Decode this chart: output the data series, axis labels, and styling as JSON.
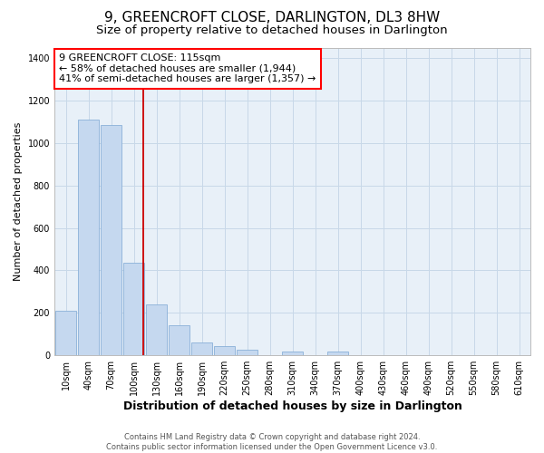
{
  "title": "9, GREENCROFT CLOSE, DARLINGTON, DL3 8HW",
  "subtitle": "Size of property relative to detached houses in Darlington",
  "xlabel": "Distribution of detached houses by size in Darlington",
  "ylabel": "Number of detached properties",
  "categories": [
    "10sqm",
    "40sqm",
    "70sqm",
    "100sqm",
    "130sqm",
    "160sqm",
    "190sqm",
    "220sqm",
    "250sqm",
    "280sqm",
    "310sqm",
    "340sqm",
    "370sqm",
    "400sqm",
    "430sqm",
    "460sqm",
    "490sqm",
    "520sqm",
    "550sqm",
    "580sqm",
    "610sqm"
  ],
  "values": [
    210,
    1110,
    1085,
    435,
    240,
    140,
    60,
    45,
    25,
    0,
    20,
    0,
    20,
    0,
    0,
    0,
    0,
    0,
    0,
    0,
    0
  ],
  "bar_color": "#c5d8ef",
  "bar_edge_color": "#8ab0d8",
  "annotation_text": "9 GREENCROFT CLOSE: 115sqm\n← 58% of detached houses are smaller (1,944)\n41% of semi-detached houses are larger (1,357) →",
  "vline_color": "#cc0000",
  "ylim": [
    0,
    1450
  ],
  "yticks": [
    0,
    200,
    400,
    600,
    800,
    1000,
    1200,
    1400
  ],
  "grid_color": "#c8d8e8",
  "bg_color": "#e8f0f8",
  "footer": "Contains HM Land Registry data © Crown copyright and database right 2024.\nContains public sector information licensed under the Open Government Licence v3.0.",
  "title_fontsize": 11,
  "subtitle_fontsize": 9.5,
  "annotation_fontsize": 8,
  "tick_fontsize": 7,
  "ylabel_fontsize": 8,
  "xlabel_fontsize": 9
}
